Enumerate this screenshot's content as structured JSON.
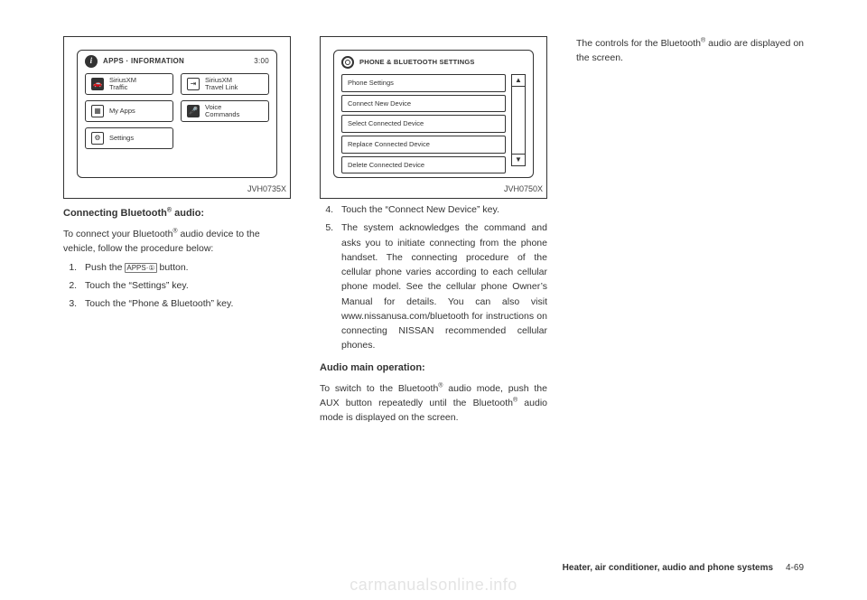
{
  "fig1": {
    "label": "JVH0735X",
    "header": "APPS · INFORMATION",
    "time": "3:00",
    "buttons": [
      {
        "icon": "🚗",
        "iconDark": true,
        "line1": "SiriusXM",
        "line2": "Traffic"
      },
      {
        "icon": "⇥",
        "iconDark": false,
        "line1": "SiriusXM",
        "line2": "Travel Link"
      },
      {
        "icon": "▦",
        "iconDark": false,
        "line1": "My Apps",
        "line2": ""
      },
      {
        "icon": "🎤",
        "iconDark": true,
        "line1": "Voice",
        "line2": "Commands"
      },
      {
        "icon": "⚙",
        "iconDark": false,
        "line1": "Settings",
        "line2": ""
      }
    ]
  },
  "fig2": {
    "label": "JVH0750X",
    "header": "PHONE & BLUETOOTH SETTINGS",
    "rows": [
      "Phone Settings",
      "Connect New Device",
      "Select Connected Device",
      "Replace Connected Device",
      "Delete Connected Device"
    ]
  },
  "col1": {
    "h1": "Connecting Bluetooth",
    "h1_sup": "®",
    "h1_tail": " audio:",
    "p1a": "To connect your Bluetooth",
    "p1b": " audio device to the vehicle, follow the procedure below:",
    "li1a": "Push the ",
    "li1_btn": "APPS·①",
    "li1b": " button.",
    "li2": "Touch the “Settings” key.",
    "li3": "Touch the “Phone & Bluetooth” key."
  },
  "col2": {
    "li4": "Touch the “Connect New Device” key.",
    "li5": "The system acknowledges the command and asks you to initiate connecting from the phone handset. The connecting procedure of the cellular phone varies according to each cellular phone model. See the cellular phone Owner’s Manual for details. You can also visit www.nissanusa.com/bluetooth for instructions on connecting NISSAN recom­mended cellular phones.",
    "h2": "Audio main operation:",
    "p2a": "To switch to the Bluetooth",
    "p2b": " audio mode, push the AUX button repeatedly until the Bluetooth",
    "p2c": " audio mode is displayed on the screen."
  },
  "col3": {
    "p3a": "The controls for the Bluetooth",
    "p3b": " audio are displayed on the screen."
  },
  "footer": {
    "section": "Heater, air conditioner, audio and phone systems",
    "page": "4-69"
  },
  "watermark": "carmanualsonline.info"
}
